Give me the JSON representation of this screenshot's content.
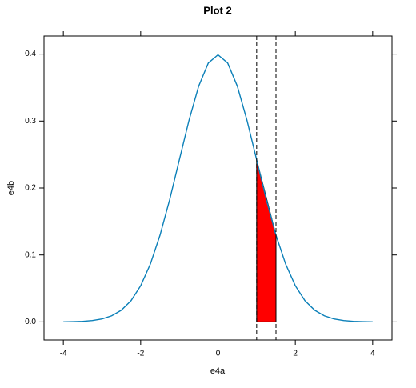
{
  "chart_data": {
    "type": "line",
    "title": "Plot 2",
    "x_label": "e4a",
    "y_label": "e4b",
    "x": [
      -4,
      -3.75,
      -3.5,
      -3.25,
      -3,
      -2.75,
      -2.5,
      -2.25,
      -2,
      -1.75,
      -1.5,
      -1.25,
      -1,
      -0.75,
      -0.5,
      -0.25,
      0,
      0.25,
      0.5,
      0.75,
      1,
      1.25,
      1.5,
      1.75,
      2,
      2.25,
      2.5,
      2.75,
      3,
      3.25,
      3.5,
      3.75,
      4
    ],
    "series": [
      {
        "color": "#0a7fb8",
        "values": [
          0.0001,
          0.0004,
          0.0009,
          0.002,
          0.0044,
          0.0091,
          0.0175,
          0.0317,
          0.054,
          0.0863,
          0.1295,
          0.1826,
          0.242,
          0.3011,
          0.3521,
          0.3867,
          0.3989,
          0.3867,
          0.3521,
          0.3011,
          0.242,
          0.1826,
          0.1295,
          0.0863,
          0.054,
          0.0317,
          0.0175,
          0.0091,
          0.0044,
          0.002,
          0.0009,
          0.0004,
          0.0001
        ]
      }
    ],
    "shaded_region": {
      "x": [
        1,
        1.5
      ],
      "y": [
        0.242,
        0.1295
      ],
      "color": "#ff0000"
    },
    "vlines": [
      0,
      1,
      1.5
    ],
    "xlim": [
      -4.5,
      4.5
    ],
    "ylim": [
      -0.027,
      0.427
    ],
    "xticks": [
      -4,
      -2,
      0,
      2,
      4
    ],
    "yticks": [
      {
        "value": 0,
        "label": "0.0"
      },
      {
        "value": 0.1,
        "label": "0.1"
      },
      {
        "value": 0.2,
        "label": "0.2"
      },
      {
        "value": 0.3,
        "label": "0.3"
      },
      {
        "value": 0.4,
        "label": "0.4"
      }
    ]
  }
}
